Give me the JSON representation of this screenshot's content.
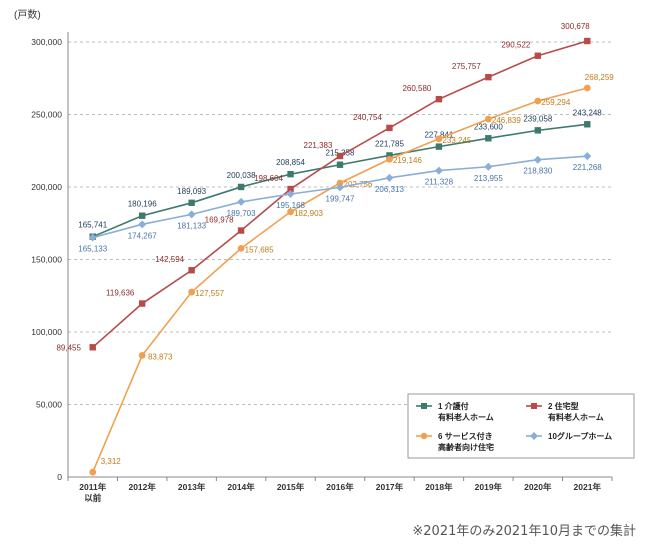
{
  "unit_label": "(戸数)",
  "footnote": "※2021年のみ2021年10月までの集計",
  "chart_data": {
    "type": "line",
    "title": "",
    "xlabel": "",
    "ylabel": "",
    "ylim": [
      0,
      300000
    ],
    "yticks": [
      "0",
      "50,000",
      "100,000",
      "150,000",
      "200,000",
      "250,000",
      "300,000"
    ],
    "ytick_values": [
      0,
      50000,
      100000,
      150000,
      200000,
      250000,
      300000
    ],
    "categories": [
      "2011年\n以前",
      "2012年",
      "2013年",
      "2014年",
      "2015年",
      "2016年",
      "2017年",
      "2018年",
      "2019年",
      "2020年",
      "2021年"
    ],
    "grid": true,
    "legend_position": "bottom-right",
    "series": [
      {
        "name": "1 介護付\n有料老人ホーム",
        "color": "#3d7a6e",
        "marker": "square",
        "values": [
          165741,
          180196,
          189093,
          200038,
          208854,
          215358,
          221785,
          227841,
          233600,
          239058,
          243248
        ],
        "labels": [
          "165,741",
          "180,196",
          "189,093",
          "200,038",
          "208,854",
          "215,358",
          "221,785",
          "227,841",
          "233,600",
          "239,058",
          "243,248"
        ],
        "label_color": "#1f3b5a"
      },
      {
        "name": "2 住宅型\n有料老人ホーム",
        "color": "#b84a4a",
        "marker": "square",
        "values": [
          89455,
          119636,
          142594,
          169978,
          198604,
          221383,
          240754,
          260580,
          275757,
          290522,
          300678
        ],
        "labels": [
          "89,455",
          "119,636",
          "142,594",
          "169,978",
          "198,604",
          "221,383",
          "240,754",
          "260,580",
          "275,757",
          "290,522",
          "300,678"
        ],
        "label_color": "#8b2a2a"
      },
      {
        "name": "6 サービス付き\n高齢者向け住宅",
        "color": "#f0a050",
        "marker": "circle",
        "values": [
          3312,
          83873,
          127557,
          157685,
          182903,
          202756,
          219146,
          233245,
          246839,
          259294,
          268259
        ],
        "labels": [
          "3,312",
          "83,873",
          "127,557",
          "157,685",
          "182,903",
          "202,756",
          "219,146",
          "233,245",
          "246,839",
          "259,294",
          "268,259"
        ],
        "label_color": "#c27a1a"
      },
      {
        "name": "10グループホーム",
        "color": "#8aaed6",
        "marker": "diamond",
        "values": [
          165133,
          174267,
          181133,
          189703,
          195168,
          199747,
          206313,
          211328,
          213955,
          218830,
          221268
        ],
        "labels": [
          "165,133",
          "174,267",
          "181,133",
          "189,703",
          "195,168",
          "199,747",
          "206,313",
          "211,328",
          "213,955",
          "218,830",
          "221,268"
        ],
        "label_color": "#4a74a8"
      }
    ]
  }
}
